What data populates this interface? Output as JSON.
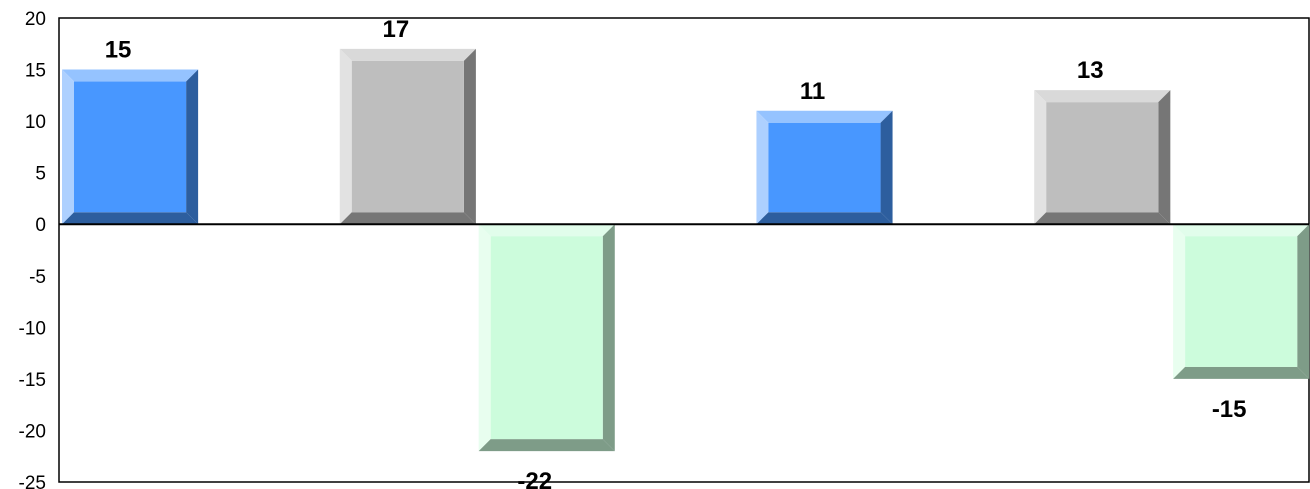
{
  "chart_data": {
    "type": "bar",
    "style": "3d-bevel",
    "title": "",
    "xlabel": "",
    "ylabel": "",
    "ylim": [
      -25,
      20
    ],
    "yticks": [
      20,
      15,
      10,
      5,
      0,
      -5,
      -10,
      -15,
      -20,
      -25
    ],
    "ytick_labels": [
      "20",
      "15",
      "10",
      "5",
      "0",
      "-5",
      "-10",
      "-15",
      "-20",
      "-25"
    ],
    "grid": false,
    "legend": "none",
    "slots": 9,
    "bars": [
      {
        "slot": 0,
        "value": 15,
        "label": "15",
        "color": "#4897FF"
      },
      {
        "slot": 2,
        "value": 17,
        "label": "17",
        "color": "#BEBEBE"
      },
      {
        "slot": 3,
        "value": -22,
        "label": "-22",
        "color": "#CCFCDC"
      },
      {
        "slot": 5,
        "value": 11,
        "label": "11",
        "color": "#4897FF"
      },
      {
        "slot": 7,
        "value": 13,
        "label": "13",
        "color": "#BEBEBE"
      },
      {
        "slot": 8,
        "value": -15,
        "label": "-15",
        "color": "#CCFCDC"
      }
    ]
  }
}
